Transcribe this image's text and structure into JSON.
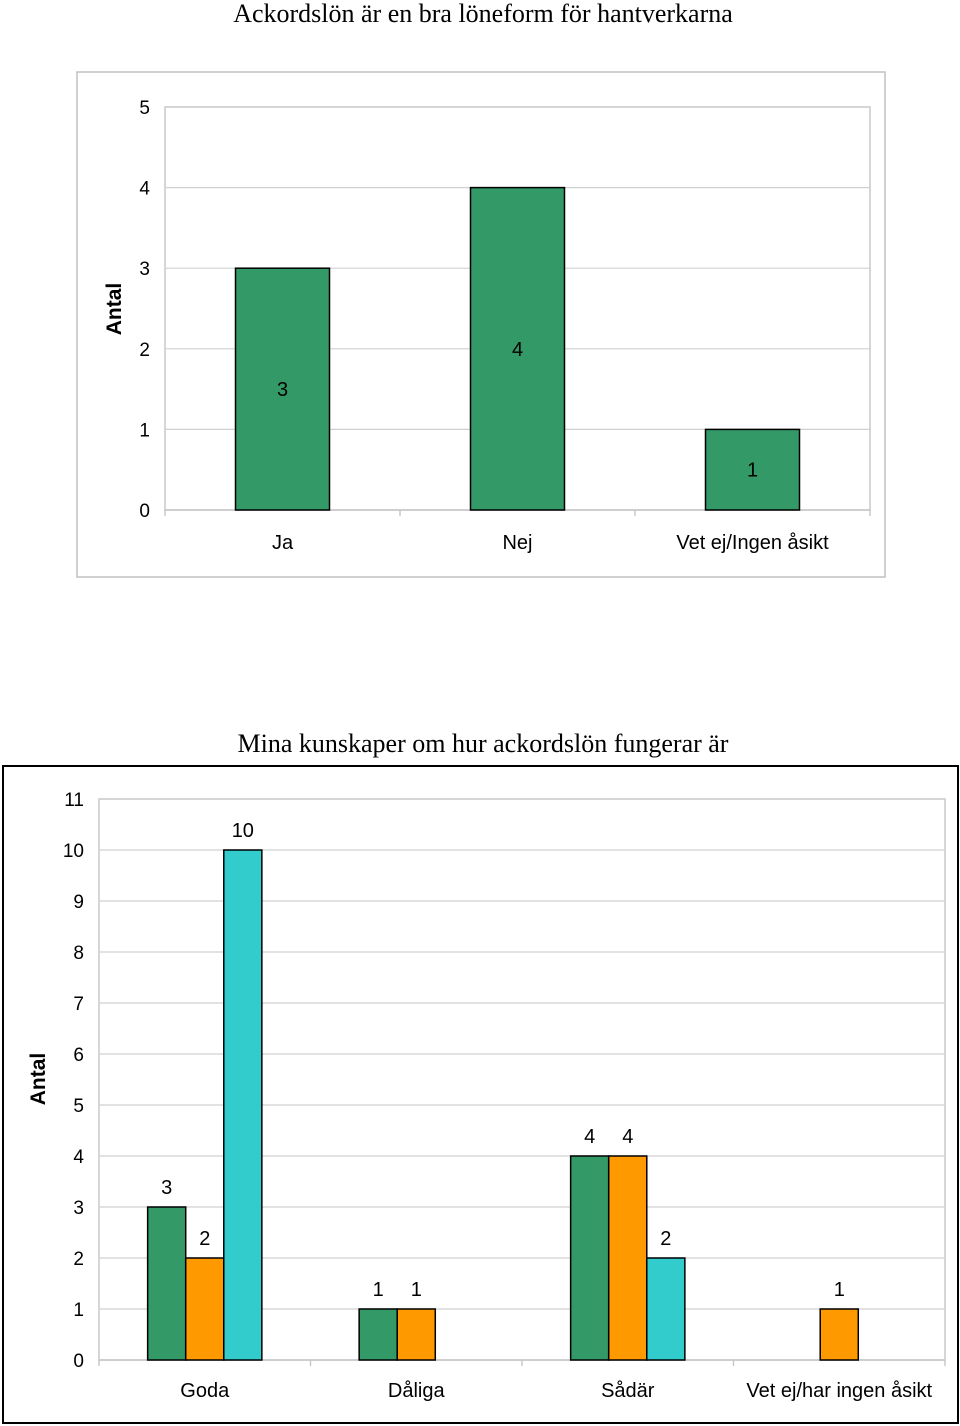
{
  "chart_data": [
    {
      "type": "bar",
      "title": "Ackordslön är en bra löneform för hantverkarna",
      "ylabel": "Antal",
      "xlabel": "",
      "categories": [
        "Ja",
        "Nej",
        "Vet ej/Ingen åsikt"
      ],
      "values": [
        3,
        4,
        1
      ],
      "ylim": [
        0,
        5
      ],
      "yticks": [
        "0",
        "1",
        "2",
        "3",
        "4",
        "5"
      ],
      "grid": true,
      "colors": {
        "bar": "#339966"
      }
    },
    {
      "type": "bar",
      "title": "Mina kunskaper om hur ackordslön fungerar är",
      "ylabel": "Antal",
      "xlabel": "",
      "categories": [
        "Goda",
        "Dåliga",
        "Sådär",
        "Vet ej/har ingen åsikt"
      ],
      "series": [
        {
          "values": [
            3,
            1,
            4,
            null
          ]
        },
        {
          "values": [
            2,
            1,
            4,
            1
          ]
        },
        {
          "values": [
            10,
            null,
            2,
            null
          ]
        }
      ],
      "ylim": [
        0,
        11
      ],
      "yticks": [
        "0",
        "1",
        "2",
        "3",
        "4",
        "5",
        "6",
        "7",
        "8",
        "9",
        "10",
        "11"
      ],
      "grid": true,
      "colors": {
        "series": [
          "#339966",
          "#FF9900",
          "#33CCCC"
        ]
      }
    }
  ]
}
